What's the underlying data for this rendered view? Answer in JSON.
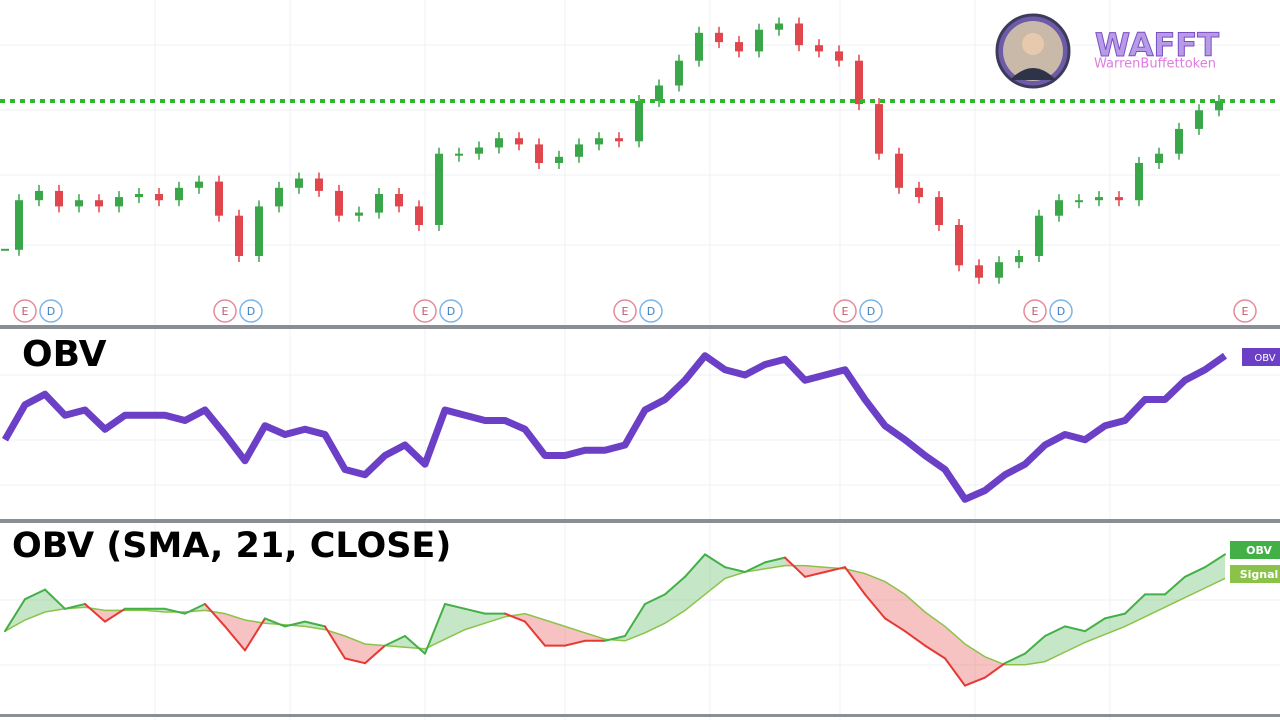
{
  "logo": {
    "title": "WAFFT",
    "subtitle": "WarrenBuffettoken"
  },
  "chart_data": [
    {
      "type": "candlestick",
      "values": [
        22,
        38,
        41,
        36,
        38,
        36,
        39,
        40,
        38,
        42,
        44,
        33,
        20,
        36,
        42,
        45,
        41,
        33,
        34,
        40,
        36,
        30,
        53,
        53,
        55,
        58,
        56,
        50,
        52,
        56,
        58,
        57,
        70,
        75,
        83,
        92,
        89,
        86,
        93,
        95,
        88,
        86,
        83,
        69,
        53,
        42,
        39,
        30,
        17,
        13,
        18,
        20,
        33,
        38,
        38,
        39,
        38,
        50,
        53,
        61,
        67,
        70
      ],
      "ylim": [
        0,
        100
      ],
      "level": 70,
      "level_color": "#2db82d",
      "up_color": "#3aa64a",
      "down_color": "#e0464b",
      "events": [
        {
          "x": 1,
          "labels": [
            "E",
            "D"
          ]
        },
        {
          "x": 11,
          "labels": [
            "E",
            "D"
          ]
        },
        {
          "x": 21,
          "labels": [
            "E",
            "D"
          ]
        },
        {
          "x": 31,
          "labels": [
            "E",
            "D"
          ]
        },
        {
          "x": 42,
          "labels": [
            "E",
            "D"
          ]
        },
        {
          "x": 51.5,
          "labels": [
            "E",
            "D"
          ]
        },
        {
          "x": 62,
          "labels": [
            "E"
          ]
        }
      ]
    },
    {
      "type": "line",
      "title": "OBV",
      "ylim": [
        0,
        100
      ],
      "series": [
        {
          "name": "OBV",
          "color": "#6b3fc6",
          "values": [
            43,
            63,
            69,
            57,
            60,
            49,
            57,
            57,
            57,
            54,
            60,
            46,
            31,
            51,
            46,
            49,
            46,
            26,
            23,
            34,
            40,
            29,
            60,
            57,
            54,
            54,
            49,
            34,
            34,
            37,
            37,
            40,
            60,
            66,
            77,
            91,
            83,
            80,
            86,
            89,
            77,
            80,
            83,
            66,
            51,
            43,
            34,
            26,
            9,
            14,
            23,
            29,
            40,
            46,
            43,
            51,
            54,
            66,
            66,
            77,
            83,
            91
          ]
        }
      ]
    },
    {
      "type": "signal",
      "title": "OBV (SMA, 21, CLOSE)",
      "ylim": [
        0,
        100
      ],
      "down_color": "#e53935",
      "series": [
        {
          "name": "OBV",
          "color": "#43b047",
          "values": [
            43,
            63,
            69,
            57,
            60,
            49,
            57,
            57,
            57,
            54,
            60,
            46,
            31,
            51,
            46,
            49,
            46,
            26,
            23,
            34,
            40,
            29,
            60,
            57,
            54,
            54,
            49,
            34,
            34,
            37,
            37,
            40,
            60,
            66,
            77,
            91,
            83,
            80,
            86,
            89,
            77,
            80,
            83,
            66,
            51,
            43,
            34,
            26,
            9,
            14,
            23,
            29,
            40,
            46,
            43,
            51,
            54,
            66,
            66,
            77,
            83,
            91
          ]
        },
        {
          "name": "Signal",
          "color": "#8bc34a",
          "values": [
            43,
            50,
            55,
            57,
            58,
            56,
            56,
            56,
            55,
            55,
            56,
            54,
            50,
            48,
            47,
            46,
            44,
            40,
            35,
            34,
            33,
            32,
            38,
            44,
            48,
            52,
            54,
            50,
            46,
            42,
            38,
            37,
            42,
            48,
            56,
            66,
            76,
            80,
            82,
            84,
            84,
            83,
            82,
            79,
            74,
            66,
            55,
            46,
            35,
            27,
            22,
            22,
            24,
            30,
            36,
            41,
            46,
            52,
            58,
            64,
            70,
            76
          ]
        }
      ]
    }
  ]
}
